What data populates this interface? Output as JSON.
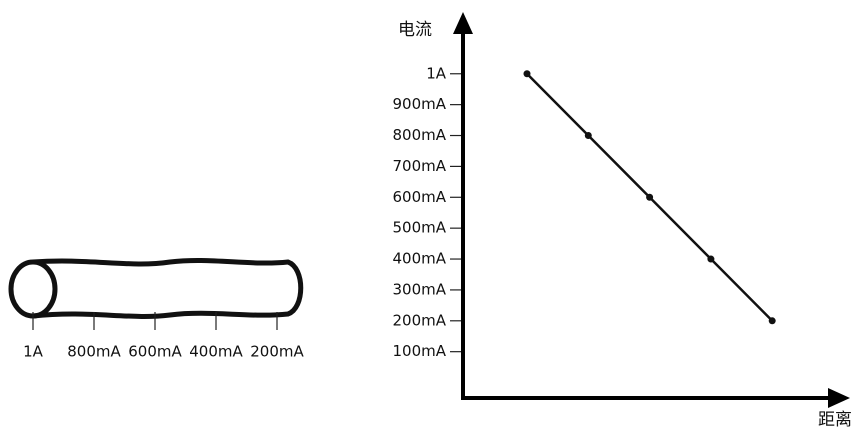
{
  "chart_data": {
    "type": "line",
    "y_label": "电流",
    "x_label": "距离",
    "categories": [
      null,
      null,
      null,
      null,
      null
    ],
    "values": [
      1000,
      800,
      600,
      400,
      200
    ],
    "color": "#111111",
    "ylim": [
      -50,
      1200
    ],
    "yticks": [
      {
        "value": 1000,
        "label": "1A"
      },
      {
        "value": 900,
        "label": "900mA"
      },
      {
        "value": 800,
        "label": "800mA"
      },
      {
        "value": 700,
        "label": "700mA"
      },
      {
        "value": 600,
        "label": "600mA"
      },
      {
        "value": 500,
        "label": "500mA"
      },
      {
        "value": 400,
        "label": "400mA"
      },
      {
        "value": 300,
        "label": "300mA"
      },
      {
        "value": 200,
        "label": "200mA"
      },
      {
        "value": 100,
        "label": "100mA"
      }
    ]
  },
  "cable": {
    "labels": [
      "1A",
      "800mA",
      "600mA",
      "400mA",
      "200mA"
    ]
  }
}
